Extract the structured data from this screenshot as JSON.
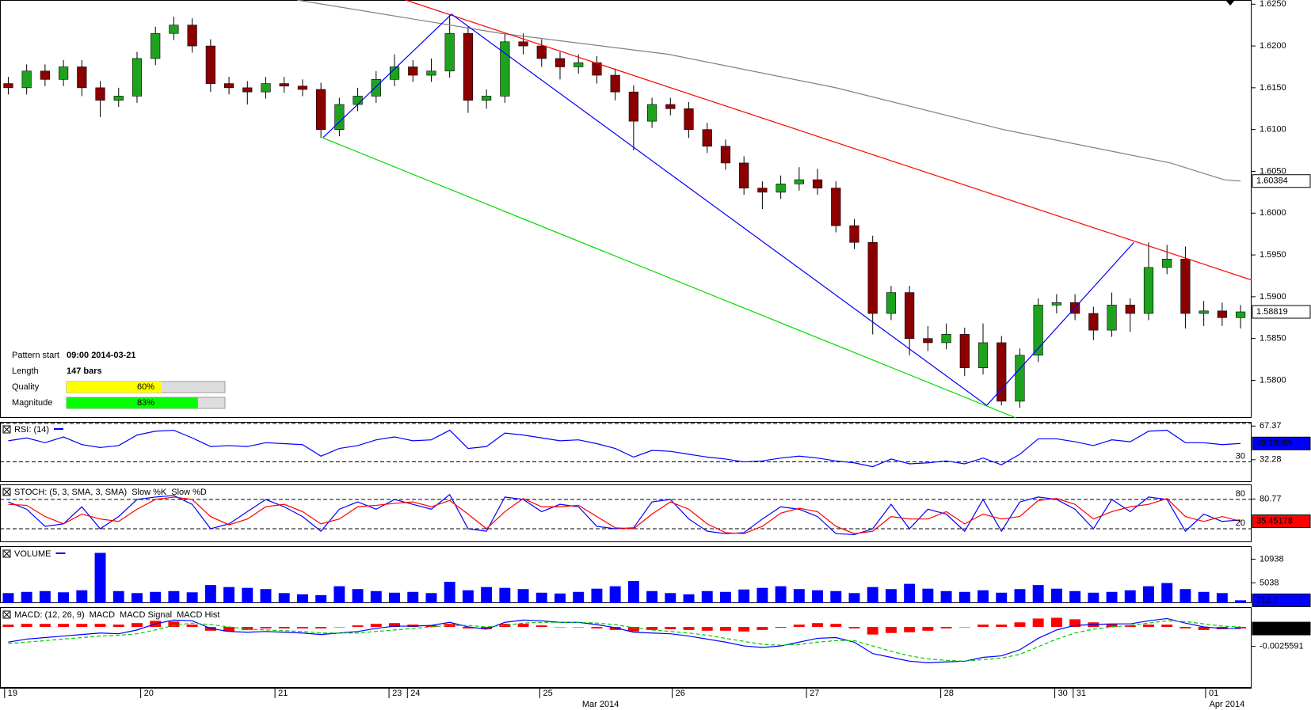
{
  "x_axis": {
    "xlim": [
      -0.45,
      67.6
    ],
    "xticks": [
      {
        "value": -0.2,
        "label": "19"
      },
      {
        "value": 7.2,
        "label": "20"
      },
      {
        "value": 14.5,
        "label": "21"
      },
      {
        "value": 20.7,
        "label": "23"
      },
      {
        "value": 21.7,
        "label": "24"
      },
      {
        "value": 28.9,
        "label": "25"
      },
      {
        "value": 36.1,
        "label": "26"
      },
      {
        "value": 43.4,
        "label": "27"
      },
      {
        "value": 50.7,
        "label": "28"
      },
      {
        "value": 56.9,
        "label": "30"
      },
      {
        "value": 57.9,
        "label": "31"
      },
      {
        "value": 65.1,
        "label": "01"
      }
    ],
    "month_ticks": [
      {
        "value": 31.2,
        "label": "Mar 2014"
      },
      {
        "value": 65.3,
        "label": "Apr 2014"
      }
    ]
  },
  "pattern_info": {
    "rows": [
      {
        "label": "Pattern start",
        "value": "09:00 2014-03-21"
      },
      {
        "label": "Length",
        "value": "147 bars"
      },
      {
        "label": "Quality",
        "value": 60,
        "value_label": "60%",
        "color": "#ffff00"
      },
      {
        "label": "Magnitude",
        "value": 83,
        "value_label": "83%",
        "color": "#00ff00"
      }
    ]
  },
  "chart_data": [
    {
      "type": "candlestick",
      "up_color": "#1ea31e",
      "down_color": "#8b0000",
      "ylim": [
        1.5755,
        1.6255
      ],
      "yticks": [
        {
          "value": 1.58,
          "label": "1.5800"
        },
        {
          "value": 1.585,
          "label": "1.5850"
        },
        {
          "value": 1.59,
          "label": "1.5900"
        },
        {
          "value": 1.595,
          "label": "1.5950"
        },
        {
          "value": 1.6,
          "label": "1.6000"
        },
        {
          "value": 1.605,
          "label": "1.6050"
        },
        {
          "value": 1.61,
          "label": "1.6100"
        },
        {
          "value": 1.615,
          "label": "1.6150"
        },
        {
          "value": 1.62,
          "label": "1.6200"
        },
        {
          "value": 1.625,
          "label": "1.6250"
        }
      ],
      "open": [
        1.6155,
        1.615,
        1.617,
        1.616,
        1.6175,
        1.615,
        1.6135,
        1.614,
        1.6185,
        1.6215,
        1.6225,
        1.62,
        1.6155,
        1.615,
        1.6145,
        1.6155,
        1.6152,
        1.6148,
        1.61,
        1.613,
        1.614,
        1.616,
        1.6175,
        1.6165,
        1.617,
        1.6215,
        1.6135,
        1.614,
        1.6205,
        1.62,
        1.6185,
        1.6175,
        1.618,
        1.6165,
        1.6145,
        1.611,
        1.613,
        1.6125,
        1.61,
        1.608,
        1.606,
        1.603,
        1.6025,
        1.6035,
        1.604,
        1.603,
        1.5985,
        1.5965,
        1.588,
        1.5905,
        1.585,
        1.5845,
        1.5855,
        1.5815,
        1.5845,
        1.5775,
        1.583,
        1.589,
        1.5893,
        1.588,
        1.586,
        1.589,
        1.588,
        1.5935,
        1.5945,
        1.588,
        1.5883,
        1.5875
      ],
      "high": [
        1.6163,
        1.6178,
        1.6178,
        1.6183,
        1.6183,
        1.6158,
        1.615,
        1.6193,
        1.6223,
        1.6235,
        1.6233,
        1.6208,
        1.6163,
        1.6158,
        1.6163,
        1.6163,
        1.616,
        1.6156,
        1.6138,
        1.615,
        1.617,
        1.619,
        1.6183,
        1.6185,
        1.6238,
        1.6223,
        1.6148,
        1.6215,
        1.6215,
        1.6208,
        1.6193,
        1.619,
        1.6188,
        1.6173,
        1.6153,
        1.6138,
        1.6138,
        1.6133,
        1.6108,
        1.6088,
        1.6068,
        1.6038,
        1.6045,
        1.6055,
        1.6053,
        1.6038,
        1.5993,
        1.5973,
        1.5913,
        1.5913,
        1.5865,
        1.5868,
        1.5863,
        1.5868,
        1.5853,
        1.5838,
        1.5898,
        1.5903,
        1.5903,
        1.5888,
        1.5905,
        1.5898,
        1.5965,
        1.5962,
        1.596,
        1.5895,
        1.5893,
        1.589
      ],
      "low": [
        1.6142,
        1.6142,
        1.6152,
        1.6152,
        1.614,
        1.6115,
        1.6127,
        1.6132,
        1.6177,
        1.6207,
        1.6192,
        1.6145,
        1.6142,
        1.613,
        1.6137,
        1.6144,
        1.614,
        1.609,
        1.6092,
        1.6122,
        1.6132,
        1.6152,
        1.6157,
        1.6157,
        1.6162,
        1.612,
        1.6125,
        1.6132,
        1.619,
        1.6175,
        1.616,
        1.6167,
        1.6155,
        1.6135,
        1.6075,
        1.6102,
        1.6117,
        1.609,
        1.6072,
        1.6052,
        1.6022,
        1.6005,
        1.6017,
        1.6027,
        1.6022,
        1.5977,
        1.5957,
        1.5855,
        1.5872,
        1.583,
        1.5835,
        1.5837,
        1.5805,
        1.5807,
        1.577,
        1.5767,
        1.5822,
        1.588,
        1.5872,
        1.5848,
        1.5852,
        1.5858,
        1.5872,
        1.5927,
        1.5862,
        1.5865,
        1.5865,
        1.5862
      ],
      "close": [
        1.615,
        1.617,
        1.616,
        1.6175,
        1.615,
        1.6135,
        1.614,
        1.6185,
        1.6215,
        1.6225,
        1.62,
        1.6155,
        1.615,
        1.6145,
        1.6155,
        1.6152,
        1.6148,
        1.61,
        1.613,
        1.614,
        1.616,
        1.6175,
        1.6165,
        1.617,
        1.6215,
        1.6135,
        1.614,
        1.6205,
        1.62,
        1.6185,
        1.6175,
        1.618,
        1.6165,
        1.6145,
        1.611,
        1.613,
        1.6125,
        1.61,
        1.608,
        1.606,
        1.603,
        1.6025,
        1.6035,
        1.604,
        1.603,
        1.5985,
        1.5965,
        1.588,
        1.5905,
        1.585,
        1.5845,
        1.5855,
        1.5815,
        1.5845,
        1.5775,
        1.583,
        1.589,
        1.5893,
        1.588,
        1.586,
        1.589,
        1.588,
        1.5935,
        1.5945,
        1.588,
        1.5883,
        1.5875,
        1.58819
      ],
      "box": {
        "fill": "#ffffff",
        "text_color": "#000000"
      },
      "lines": [
        {
          "color": "#808080",
          "x": [
            15.7,
            26.8,
            35.9,
            45,
            54.1,
            63.2,
            66.1,
            67.0
          ],
          "y": [
            1.6255,
            1.6215,
            1.619,
            1.615,
            1.61,
            1.606,
            1.604,
            1.60384
          ],
          "box": {
            "fill": "#ffffff",
            "text_color": "#000000"
          }
        },
        {
          "color": "#ff0000",
          "x": [
            21.6,
            67.6
          ],
          "y": [
            1.6255,
            1.592
          ]
        },
        {
          "color": "#0000ff",
          "x": [
            17.1,
            24.1,
            53.2,
            61.2
          ],
          "y": [
            1.609,
            1.6238,
            1.577,
            1.5965
          ]
        },
        {
          "color": "#00dd00",
          "x": [
            17.1,
            54.8
          ],
          "y": [
            1.609,
            1.5755
          ]
        }
      ]
    },
    {
      "type": "line",
      "title": "RSI: (14)",
      "ylim": [
        9,
        71.7
      ],
      "yticks": [
        67.37,
        32.28
      ],
      "levels": [
        {
          "value": 70
        },
        {
          "value": 30,
          "label": "30"
        }
      ],
      "series": [
        {
          "color": "#0000ff",
          "kind": "line",
          "box": {
            "fill": "#0000ff",
            "text_color": "#ffffff"
          },
          "values": [
            52,
            55,
            50,
            56,
            48,
            45,
            47,
            58,
            62,
            63,
            55,
            46,
            47,
            46,
            50,
            49,
            48,
            36,
            44,
            47,
            53,
            56,
            52,
            53,
            63,
            44,
            46,
            60,
            58,
            55,
            52,
            53,
            49,
            44,
            35,
            42,
            41,
            38,
            35,
            33,
            30,
            31,
            34,
            36,
            34,
            31,
            29,
            25,
            33,
            28,
            29,
            31,
            28,
            34,
            27,
            38,
            54,
            54,
            51,
            47,
            53,
            51,
            62,
            63,
            50,
            50,
            48,
            49.19869
          ]
        }
      ]
    },
    {
      "type": "line",
      "title": "STOCH: (5, 3, SMA, 3, SMA)",
      "ylim": [
        -7.5,
        110.8
      ],
      "yticks": [
        80.77
      ],
      "levels": [
        {
          "value": 80,
          "label": "80"
        },
        {
          "value": 20,
          "label": "20"
        }
      ],
      "series": [
        {
          "name": "Slow %K",
          "color": "#0000ff",
          "kind": "line",
          "values": [
            75,
            60,
            25,
            30,
            65,
            20,
            45,
            80,
            85,
            88,
            70,
            20,
            30,
            55,
            80,
            65,
            45,
            15,
            60,
            75,
            60,
            80,
            70,
            60,
            90,
            20,
            15,
            85,
            80,
            55,
            70,
            65,
            25,
            20,
            22,
            75,
            80,
            40,
            15,
            10,
            12,
            40,
            65,
            60,
            45,
            10,
            8,
            20,
            70,
            20,
            60,
            50,
            15,
            80,
            15,
            75,
            85,
            80,
            60,
            20,
            80,
            55,
            85,
            80,
            15,
            50,
            35,
            38
          ]
        },
        {
          "name": "Slow %D",
          "color": "#ff0000",
          "kind": "line",
          "box": {
            "fill": "#ff0000",
            "text_color": "#ffffff"
          },
          "values": [
            70,
            68,
            45,
            30,
            50,
            40,
            35,
            60,
            80,
            85,
            80,
            45,
            28,
            40,
            65,
            70,
            55,
            30,
            40,
            65,
            68,
            72,
            75,
            65,
            78,
            50,
            20,
            55,
            82,
            65,
            65,
            68,
            45,
            22,
            20,
            50,
            75,
            60,
            30,
            12,
            10,
            25,
            52,
            62,
            55,
            25,
            10,
            15,
            45,
            40,
            40,
            55,
            30,
            50,
            40,
            45,
            78,
            82,
            70,
            40,
            55,
            65,
            70,
            82,
            45,
            35,
            45,
            35.45178
          ]
        }
      ]
    },
    {
      "type": "bar",
      "title": "VOLUME",
      "ylim": [
        0,
        14170
      ],
      "yticks": [
        10938,
        5038
      ],
      "series": [
        {
          "color": "#0000ff",
          "kind": "bar",
          "box": {
            "fill": "#0000ff",
            "text_color": "#ffffff"
          },
          "values": [
            2500,
            2800,
            3000,
            2700,
            3200,
            12500,
            3000,
            2500,
            2800,
            3000,
            2700,
            4500,
            4000,
            3800,
            3500,
            2500,
            2200,
            2000,
            4200,
            3500,
            3000,
            2600,
            2800,
            2500,
            5300,
            3200,
            4000,
            3800,
            3500,
            2600,
            2400,
            2800,
            3600,
            4200,
            5500,
            3000,
            2500,
            2200,
            3000,
            2800,
            3400,
            3800,
            4200,
            3500,
            3200,
            3000,
            2500,
            4000,
            3500,
            4800,
            3600,
            3000,
            2800,
            3200,
            2600,
            3500,
            4500,
            3600,
            3000,
            2600,
            2800,
            3200,
            4200,
            5000,
            3500,
            2800,
            2500,
            712.7
          ]
        }
      ]
    },
    {
      "type": "macd",
      "title": "MACD: (12, 26, 9)",
      "ylim": [
        -0.008,
        0.0026
      ],
      "yticks": [
        -0.0025591
      ],
      "series": [
        {
          "name": "MACD",
          "color": "#0000ff",
          "kind": "line",
          "box": {
            "fill": "#000000",
            "text_color": "#ffffff"
          },
          "values": [
            -0.002,
            -0.0016,
            -0.0014,
            -0.0012,
            -0.001,
            -0.0008,
            -0.0009,
            -0.0004,
            0.0004,
            0.0009,
            0.0008,
            -0.0002,
            -0.0006,
            -0.0007,
            -0.0006,
            -0.0007,
            -0.0008,
            -0.001,
            -0.0008,
            -0.0006,
            -0.0002,
            0.0001,
            0.0001,
            0.0002,
            0.0006,
            0,
            -0.0003,
            0.0006,
            0.0009,
            0.0008,
            0.0006,
            0.0006,
            0.0003,
            -0.0001,
            -0.0007,
            -0.0008,
            -0.0009,
            -0.0012,
            -0.0016,
            -0.002,
            -0.0025,
            -0.0027,
            -0.0025,
            -0.002,
            -0.0015,
            -0.0014,
            -0.002,
            -0.0035,
            -0.004,
            -0.0045,
            -0.0047,
            -0.0046,
            -0.0045,
            -0.004,
            -0.0038,
            -0.003,
            -0.0015,
            -0.0004,
            0.0002,
            0.0003,
            0.0004,
            0.0004,
            0.0008,
            0.0011,
            0.0005,
            0,
            -0.0002,
            -0.0002149
          ]
        },
        {
          "name": "MACD Signal",
          "color": "#00cc00",
          "kind": "dashed",
          "values": [
            -0.0022,
            -0.002,
            -0.0018,
            -0.0016,
            -0.0014,
            -0.0012,
            -0.0011,
            -0.0009,
            -0.0004,
            0.0002,
            0.0005,
            0.0003,
            0,
            -0.0003,
            -0.0004,
            -0.0005,
            -0.0006,
            -0.0008,
            -0.0008,
            -0.0008,
            -0.0006,
            -0.0004,
            -0.0002,
            0,
            0.0002,
            0.0002,
            0,
            0.0002,
            0.0005,
            0.0006,
            0.0006,
            0.0006,
            0.0005,
            0.0003,
            -0.0001,
            -0.0004,
            -0.0006,
            -0.0008,
            -0.0011,
            -0.0015,
            -0.0019,
            -0.0023,
            -0.0024,
            -0.0023,
            -0.002,
            -0.0018,
            -0.0018,
            -0.0025,
            -0.0032,
            -0.0038,
            -0.0042,
            -0.0044,
            -0.0045,
            -0.0043,
            -0.0041,
            -0.0036,
            -0.0026,
            -0.0016,
            -0.0008,
            -0.0003,
            0,
            0.0002,
            0.0005,
            0.0008,
            0.0007,
            0.0004,
            0.0001,
            0
          ]
        },
        {
          "name": "MACD Hist",
          "color": "#ff0000",
          "kind": "bar",
          "values": [
            0.0003,
            0.0004,
            0.0004,
            0.0004,
            0.0004,
            0.0004,
            0.0003,
            0.0005,
            0.0008,
            0.0007,
            0.0003,
            -0.0005,
            -0.0006,
            -0.0004,
            -0.0002,
            -0.0002,
            -0.0002,
            -0.0002,
            0,
            0.0002,
            0.0004,
            0.0005,
            0.0003,
            0.0002,
            0.0004,
            -0.0002,
            -0.0003,
            0.0004,
            0.0004,
            0.0002,
            0,
            0,
            -0.0002,
            -0.0004,
            -0.0006,
            -0.0004,
            -0.0003,
            -0.0004,
            -0.0005,
            -0.0005,
            -0.0006,
            -0.0004,
            -0.0001,
            0.0003,
            0.0005,
            0.0004,
            -0.0002,
            -0.001,
            -0.0008,
            -0.0007,
            -0.0005,
            -0.0002,
            0,
            0.0003,
            0.0003,
            0.0006,
            0.0011,
            0.0012,
            0.001,
            0.0006,
            0.0004,
            0.0002,
            0.0003,
            0.0003,
            -0.0002,
            -0.0004,
            -0.0003,
            -0.0002
          ]
        }
      ]
    }
  ]
}
